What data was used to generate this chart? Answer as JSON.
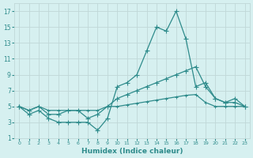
{
  "x": [
    0,
    1,
    2,
    3,
    4,
    5,
    6,
    7,
    8,
    9,
    10,
    11,
    12,
    13,
    14,
    15,
    16,
    17,
    18,
    19,
    20,
    21,
    22,
    23
  ],
  "line1": [
    5,
    4,
    4.5,
    3.5,
    3,
    3,
    3,
    3,
    2,
    3.5,
    7.5,
    8,
    9,
    12,
    15,
    14.5,
    17,
    13.5,
    7.5,
    8,
    6,
    5.5,
    6,
    5
  ],
  "line2": [
    5,
    4.5,
    5,
    4,
    4,
    4.5,
    4.5,
    3.5,
    4,
    5,
    6,
    6.5,
    7,
    7.5,
    8,
    8.5,
    9,
    9.5,
    10,
    7.5,
    6,
    5.5,
    5.5,
    5
  ],
  "line3": [
    5,
    4.5,
    5,
    4.5,
    4.5,
    4.5,
    4.5,
    4.5,
    4.5,
    5,
    5,
    5.2,
    5.4,
    5.6,
    5.8,
    6,
    6.2,
    6.4,
    6.5,
    5.5,
    5,
    5,
    5,
    5
  ],
  "color": "#2e8b8b",
  "bg_color": "#d6f0f0",
  "grid_color": "#c0d8d8",
  "xlabel": "Humidex (Indice chaleur)",
  "ylim": [
    1,
    18
  ],
  "xlim": [
    0,
    23
  ],
  "yticks": [
    1,
    3,
    5,
    7,
    9,
    11,
    13,
    15,
    17
  ],
  "xticks": [
    0,
    1,
    2,
    3,
    4,
    5,
    6,
    7,
    8,
    9,
    10,
    11,
    12,
    13,
    14,
    15,
    16,
    17,
    18,
    19,
    20,
    21,
    22,
    23
  ]
}
